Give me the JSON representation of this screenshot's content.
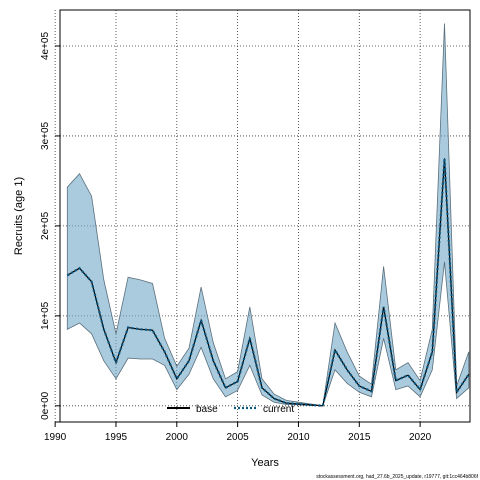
{
  "chart_data": {
    "type": "line",
    "xlabel": "Years",
    "ylabel": "Recruits (age 1)",
    "xlim": [
      1990.4,
      2024.1
    ],
    "ylim": [
      -18000,
      440000
    ],
    "x_ticks": [
      1990,
      1995,
      2000,
      2005,
      2010,
      2015,
      2020
    ],
    "y_ticks": [
      0,
      100000,
      200000,
      300000,
      400000
    ],
    "y_tick_labels": [
      "0e+00",
      "1e+05",
      "2e+05",
      "3e+05",
      "4e+05"
    ],
    "grid": true,
    "legend_position": "bottom-center",
    "x": [
      1991,
      1992,
      1993,
      1994,
      1995,
      1996,
      1997,
      1998,
      1999,
      2000,
      2001,
      2002,
      2003,
      2004,
      2005,
      2006,
      2007,
      2008,
      2009,
      2010,
      2011,
      2012,
      2013,
      2014,
      2015,
      2016,
      2017,
      2018,
      2019,
      2020,
      2021,
      2022,
      2023,
      2024
    ],
    "series": [
      {
        "name": "base",
        "color": "#000000",
        "line_style": "solid",
        "values": [
          145000,
          153000,
          138000,
          85000,
          48000,
          87000,
          85000,
          84000,
          60000,
          30000,
          50000,
          95000,
          50000,
          20000,
          27000,
          75000,
          20000,
          8000,
          3000,
          2000,
          1000,
          0,
          62000,
          40000,
          22000,
          16000,
          110000,
          28000,
          34000,
          18000,
          60000,
          275000,
          15000,
          35000
        ],
        "ci_lower": [
          85000,
          92000,
          80000,
          50000,
          30000,
          53000,
          52000,
          52000,
          45000,
          18000,
          35000,
          65000,
          30000,
          10000,
          17000,
          45000,
          12000,
          4000,
          1500,
          1000,
          500,
          0,
          40000,
          25000,
          15000,
          10000,
          75000,
          18000,
          22000,
          10000,
          40000,
          160000,
          8000,
          20000
        ],
        "ci_upper": [
          243000,
          258000,
          233000,
          140000,
          80000,
          143000,
          140000,
          136000,
          75000,
          44000,
          64000,
          132000,
          70000,
          30000,
          38000,
          110000,
          30000,
          13000,
          6000,
          4000,
          2000,
          0,
          92000,
          60000,
          33000,
          24000,
          155000,
          40000,
          48000,
          28000,
          85000,
          425000,
          22000,
          60000
        ]
      },
      {
        "name": "current",
        "color": "#0a5a86",
        "line_style": "dotted",
        "values": [
          145000,
          153000,
          138000,
          85000,
          48000,
          87000,
          85000,
          84000,
          60000,
          30000,
          50000,
          95000,
          50000,
          20000,
          27000,
          75000,
          20000,
          8000,
          3000,
          2000,
          1000,
          0,
          62000,
          40000,
          22000,
          16000,
          110000,
          28000,
          34000,
          18000,
          60000,
          275000,
          15000,
          35000
        ]
      }
    ],
    "band_color": "#6fa8c7",
    "source": "stockassessment.org, had_27.6b_2025_update, r19777, git:1cc464b806f"
  }
}
